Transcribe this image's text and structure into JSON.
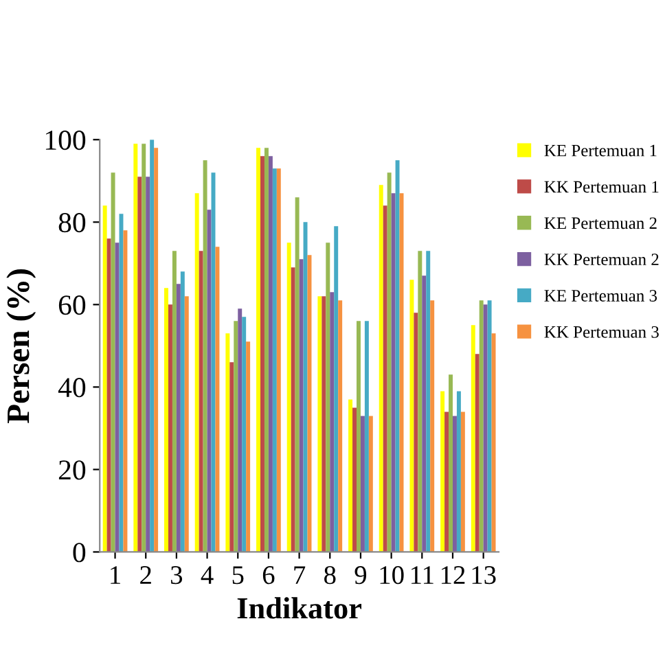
{
  "chart_data": {
    "type": "bar",
    "xlabel": "Indikator",
    "ylabel": "Persen (%)",
    "categories": [
      "1",
      "2",
      "3",
      "4",
      "5",
      "6",
      "7",
      "8",
      "9",
      "10",
      "11",
      "12",
      "13"
    ],
    "ylim": [
      0,
      100
    ],
    "yticks": [
      0,
      20,
      40,
      60,
      80,
      100
    ],
    "grid": false,
    "legend": "right",
    "series": [
      {
        "name": "KE Pertemuan 1",
        "color": "#ffff00",
        "values": [
          84,
          99,
          64,
          87,
          53,
          98,
          75,
          62,
          37,
          89,
          66,
          39,
          55
        ]
      },
      {
        "name": "KK Pertemuan 1",
        "color": "#be4b48",
        "values": [
          76,
          91,
          60,
          73,
          46,
          96,
          69,
          62,
          35,
          84,
          58,
          34,
          48
        ]
      },
      {
        "name": "KE Pertemuan 2",
        "color": "#98b954",
        "values": [
          92,
          99,
          73,
          95,
          56,
          98,
          86,
          75,
          56,
          92,
          73,
          43,
          61
        ]
      },
      {
        "name": "KK Pertemuan 2",
        "color": "#7d60a0",
        "values": [
          75,
          91,
          65,
          83,
          59,
          96,
          71,
          63,
          33,
          87,
          67,
          33,
          60
        ]
      },
      {
        "name": "KE Pertemuan 3",
        "color": "#46aac5",
        "values": [
          82,
          100,
          68,
          92,
          57,
          93,
          80,
          79,
          56,
          95,
          73,
          39,
          61
        ]
      },
      {
        "name": "KK Pertemuan 3",
        "color": "#f69240",
        "values": [
          78,
          98,
          62,
          74,
          51,
          93,
          72,
          61,
          33,
          87,
          61,
          34,
          53
        ]
      }
    ]
  }
}
